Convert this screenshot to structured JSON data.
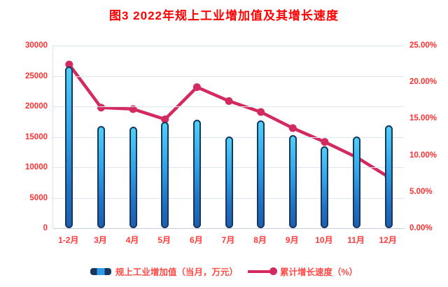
{
  "page": {
    "title": "图3  2022年规上工业增加值及其增长速度"
  },
  "chart_data": {
    "type": "combo-bar-line",
    "title": "图3  2022年规上工业增加值及其增长速度",
    "categories": [
      "1-2月",
      "3月",
      "4月",
      "5月",
      "6月",
      "7月",
      "8月",
      "9月",
      "10月",
      "11月",
      "12月"
    ],
    "series": [
      {
        "name": "规上工业增加值（当月，万元）",
        "chart_type": "bar",
        "axis": "left",
        "values": [
          26500,
          16800,
          16700,
          17500,
          17800,
          15100,
          17700,
          15300,
          13500,
          15100,
          16900
        ]
      },
      {
        "name": "累计增长速度（%）",
        "chart_type": "line",
        "axis": "right",
        "values": [
          22.4,
          16.5,
          16.3,
          14.9,
          19.3,
          17.4,
          15.9,
          13.7,
          11.8,
          9.7,
          7.0
        ]
      }
    ],
    "left_axis": {
      "min": 0,
      "max": 30000,
      "step": 5000,
      "tick_labels": [
        "0",
        "5000",
        "10000",
        "15000",
        "20000",
        "25000",
        "30000"
      ]
    },
    "right_axis": {
      "min": 0,
      "max": 25,
      "step": 5,
      "tick_labels": [
        "0.00%",
        "5.00%",
        "10.00%",
        "15.00%",
        "20.00%",
        "25.00%"
      ]
    },
    "grid": true,
    "legend_position": "bottom",
    "colors": {
      "title_text": "#FF0000",
      "axis_label_text": "#FF3030",
      "legend_text": "#FF4A45",
      "bar_outline": "#17375E",
      "bar_fill_top": "#4FD0F7",
      "bar_fill_bottom": "#1C5FB0",
      "line": "#D32A60",
      "gridline": "#DEE4F0"
    }
  }
}
